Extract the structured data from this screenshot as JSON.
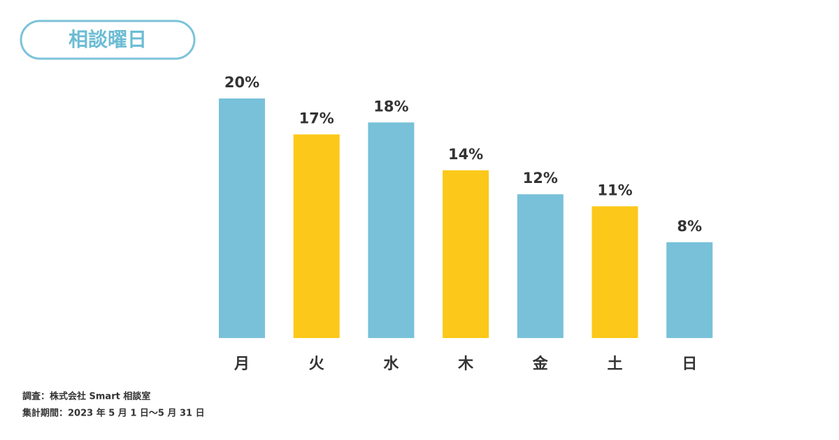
{
  "chart_data": {
    "type": "bar",
    "title": "相談曜日",
    "categories": [
      "月",
      "火",
      "水",
      "木",
      "金",
      "土",
      "日"
    ],
    "values": [
      20,
      17,
      18,
      14,
      12,
      11,
      8
    ],
    "value_labels": [
      "20%",
      "17%",
      "18%",
      "14%",
      "12%",
      "11%",
      "8%"
    ],
    "colors": [
      "#78c1d9",
      "#fcc81a",
      "#78c1d9",
      "#fcc81a",
      "#78c1d9",
      "#fcc81a",
      "#78c1d9"
    ],
    "notes": [
      "調査：株式会社 Smart 相談室",
      "集計期間：2023 年 5 月 1 日〜5 月 31 日"
    ]
  }
}
